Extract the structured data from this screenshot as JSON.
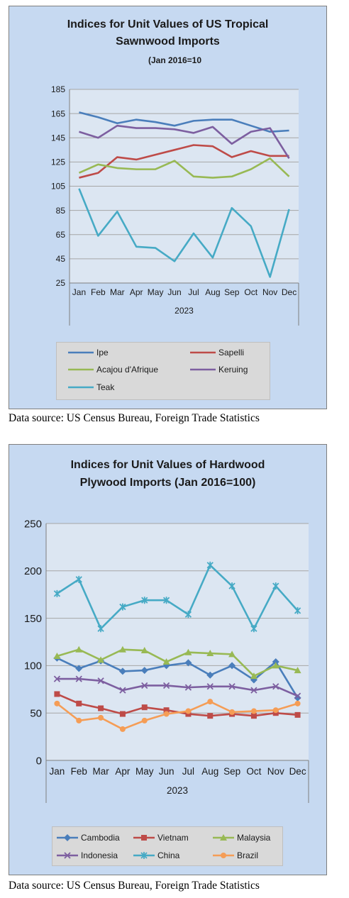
{
  "chart_data": [
    {
      "type": "line",
      "title": "Indices for Unit Values of US Tropical Sawnwood Imports",
      "title_line1": "Indices for Unit Values of US Tropical",
      "title_line2": "Sawnwood Imports",
      "subtitle": "(Jan 2016=10",
      "categories": [
        "Jan",
        "Feb",
        "Mar",
        "Apr",
        "May",
        "Jun",
        "Jul",
        "Aug",
        "Sep",
        "Oct",
        "Nov",
        "Dec"
      ],
      "xlabel": "2023",
      "ylabel": "",
      "ylim": [
        25,
        185
      ],
      "yticks": [
        25,
        45,
        65,
        85,
        105,
        125,
        145,
        165,
        185
      ],
      "grid": true,
      "legend": "bottom",
      "series": [
        {
          "name": "Ipe",
          "color": "#4a7ebb",
          "marker": "none",
          "values": [
            166,
            162,
            157,
            160,
            158,
            155,
            159,
            160,
            160,
            155,
            150,
            151
          ]
        },
        {
          "name": "Sapelli",
          "color": "#be4b48",
          "marker": "none",
          "values": [
            112,
            116,
            129,
            127,
            131,
            135,
            139,
            138,
            129,
            134,
            130,
            130
          ]
        },
        {
          "name": "Acajou d'Afrique",
          "color": "#98b954",
          "marker": "none",
          "values": [
            116,
            123,
            120,
            119,
            119,
            126,
            113,
            112,
            113,
            119,
            128,
            113
          ]
        },
        {
          "name": "Keruing",
          "color": "#7d5fa0",
          "marker": "none",
          "values": [
            150,
            145,
            155,
            153,
            153,
            152,
            149,
            154,
            140,
            150,
            153,
            128
          ]
        },
        {
          "name": "Teak",
          "color": "#46aac5",
          "marker": "none",
          "values": [
            103,
            64,
            84,
            55,
            54,
            43,
            66,
            46,
            87,
            72,
            30,
            86
          ]
        }
      ]
    },
    {
      "type": "line",
      "title": "Indices for Unit Values of Hardwood Plywood Imports (Jan 2016=100)",
      "title_line1": "Indices for Unit Values of Hardwood",
      "title_line2": "Plywood Imports (Jan 2016=100)",
      "categories": [
        "Jan",
        "Feb",
        "Mar",
        "Apr",
        "May",
        "Jun",
        "Jul",
        "Aug",
        "Sep",
        "Oct",
        "Nov",
        "Dec"
      ],
      "xlabel": "2023",
      "ylabel": "",
      "ylim": [
        0,
        250
      ],
      "yticks": [
        0,
        50,
        100,
        150,
        200,
        250
      ],
      "grid": true,
      "legend": "bottom",
      "series": [
        {
          "name": "Cambodia",
          "color": "#4a7ebb",
          "marker": "diamond",
          "values": [
            108,
            97,
            105,
            94,
            95,
            100,
            103,
            90,
            100,
            85,
            104,
            66
          ]
        },
        {
          "name": "Vietnam",
          "color": "#be4b48",
          "marker": "square",
          "values": [
            70,
            60,
            55,
            49,
            56,
            53,
            49,
            47,
            49,
            47,
            50,
            48
          ]
        },
        {
          "name": "Malaysia",
          "color": "#98b954",
          "marker": "triangle",
          "values": [
            110,
            117,
            106,
            117,
            116,
            104,
            114,
            113,
            112,
            89,
            100,
            95
          ]
        },
        {
          "name": "Indonesia",
          "color": "#7d5fa0",
          "marker": "x",
          "values": [
            86,
            86,
            84,
            74,
            79,
            79,
            77,
            78,
            78,
            74,
            78,
            68
          ]
        },
        {
          "name": "China",
          "color": "#46aac5",
          "marker": "star",
          "values": [
            176,
            191,
            139,
            162,
            169,
            169,
            154,
            206,
            184,
            139,
            184,
            158
          ]
        },
        {
          "name": "Brazil",
          "color": "#f59d56",
          "marker": "circle",
          "values": [
            60,
            42,
            45,
            33,
            42,
            49,
            52,
            62,
            51,
            52,
            53,
            60
          ]
        }
      ]
    }
  ],
  "sources": [
    "Data source: US Census Bureau, Foreign Trade Statistics",
    "Data source: US Census Bureau, Foreign Trade Statistics"
  ]
}
